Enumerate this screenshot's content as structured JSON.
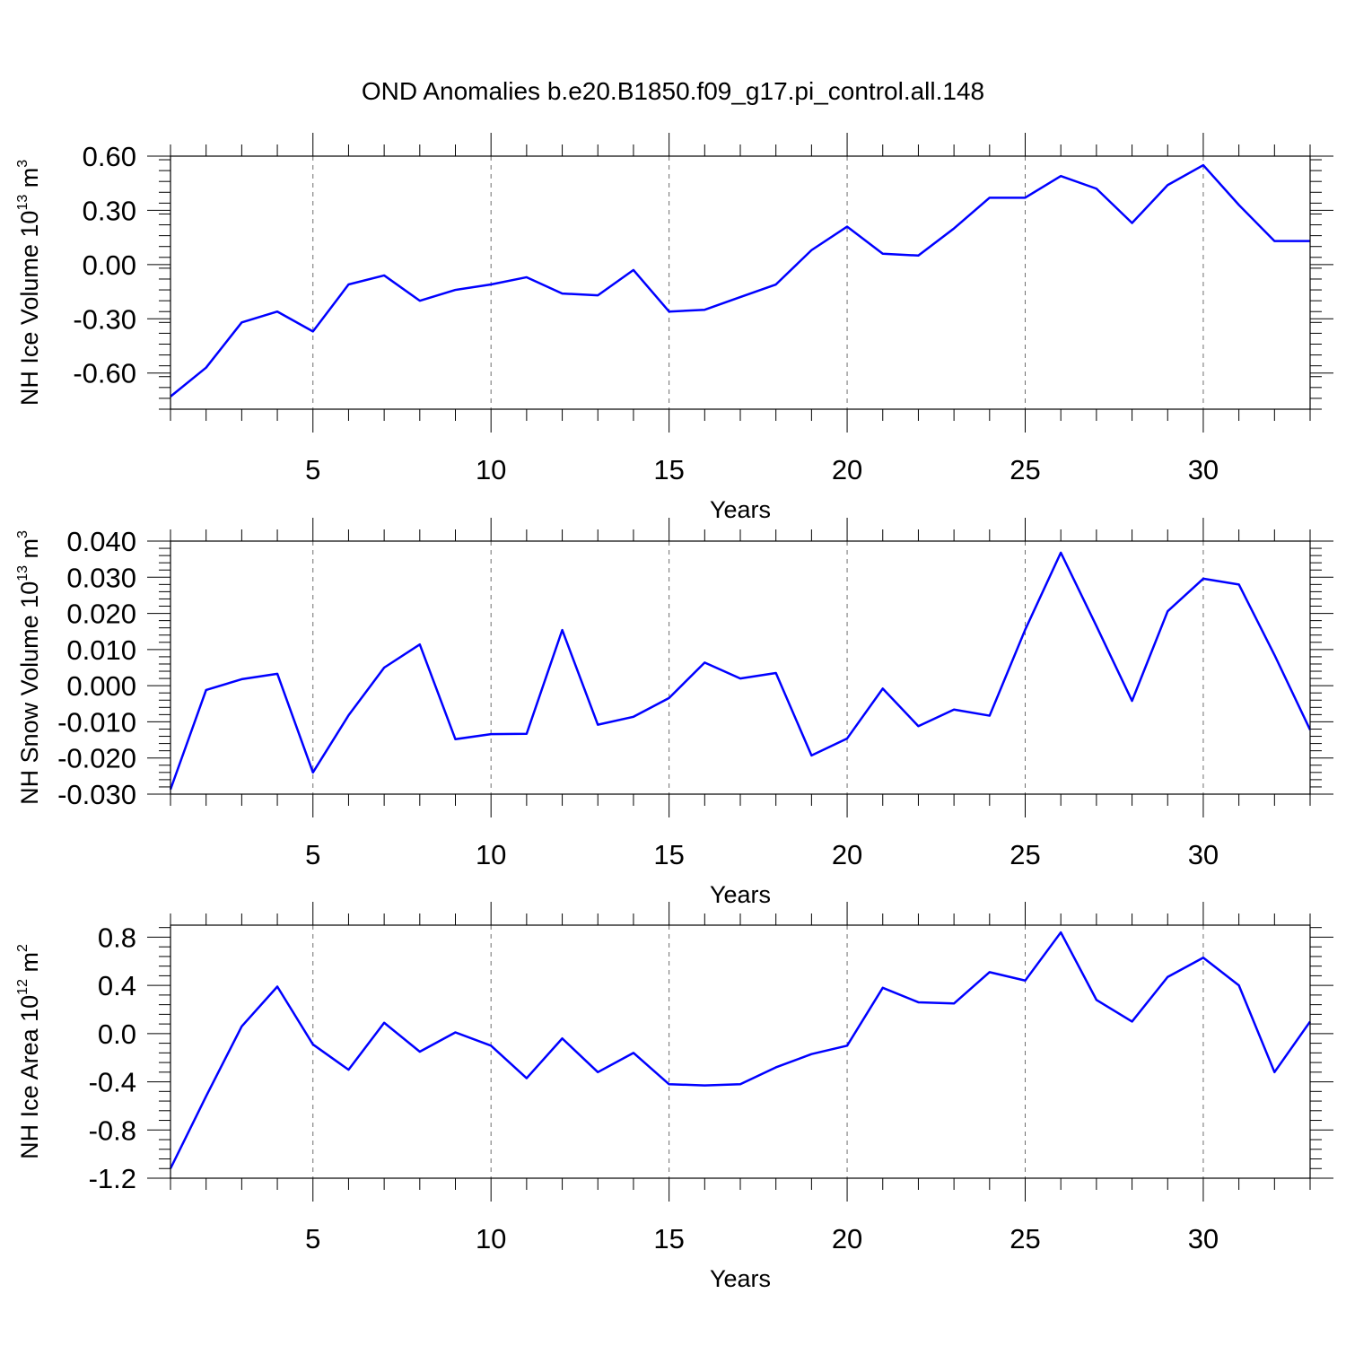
{
  "title": "OND Anomalies b.e20.B1850.f09_g17.pi_control.all.148",
  "line_color": "#0000ff",
  "chart_data": [
    {
      "type": "line",
      "xlabel": "Years",
      "ylabel": {
        "main": "NH Ice Volume 10",
        "exp": "13",
        "unit": " m",
        "unit_exp": "3"
      },
      "xlim": [
        1,
        33
      ],
      "ylim": [
        -0.8,
        0.6
      ],
      "x_ticks": [
        5,
        10,
        15,
        20,
        25,
        30
      ],
      "x_tick_labels": [
        "5",
        "10",
        "15",
        "20",
        "25",
        "30"
      ],
      "y_ticks": [
        0.6,
        0.3,
        0.0,
        -0.3,
        -0.6
      ],
      "y_tick_labels": [
        "0.60",
        "0.30",
        "0.00",
        "-0.30",
        "-0.60"
      ],
      "grid": "vertical dashed at major x ticks",
      "x": [
        1,
        2,
        3,
        4,
        5,
        6,
        7,
        8,
        9,
        10,
        11,
        12,
        13,
        14,
        15,
        16,
        17,
        18,
        19,
        20,
        21,
        22,
        23,
        24,
        25,
        26,
        27,
        28,
        29,
        30,
        31,
        32,
        33
      ],
      "series": [
        {
          "values": [
            -0.73,
            -0.57,
            -0.32,
            -0.26,
            -0.37,
            -0.11,
            -0.06,
            -0.2,
            -0.14,
            -0.11,
            -0.07,
            -0.16,
            -0.17,
            -0.03,
            -0.26,
            -0.25,
            -0.18,
            -0.11,
            0.08,
            0.21,
            0.06,
            0.05,
            0.2,
            0.37,
            0.37,
            0.49,
            0.42,
            0.23,
            0.44,
            0.55,
            0.33,
            0.13,
            0.13
          ]
        }
      ]
    },
    {
      "type": "line",
      "xlabel": "Years",
      "ylabel": {
        "main": "NH Snow Volume 10",
        "exp": "13",
        "unit": " m",
        "unit_exp": "3"
      },
      "xlim": [
        1,
        33
      ],
      "ylim": [
        -0.03,
        0.04
      ],
      "x_ticks": [
        5,
        10,
        15,
        20,
        25,
        30
      ],
      "x_tick_labels": [
        "5",
        "10",
        "15",
        "20",
        "25",
        "30"
      ],
      "y_ticks": [
        0.04,
        0.03,
        0.02,
        0.01,
        0.0,
        -0.01,
        -0.02,
        -0.03
      ],
      "y_tick_labels": [
        "0.040",
        "0.030",
        "0.020",
        "0.010",
        "0.000",
        "-0.010",
        "-0.020",
        "-0.030"
      ],
      "grid": "vertical dashed at major x ticks",
      "x": [
        1,
        2,
        3,
        4,
        5,
        6,
        7,
        8,
        9,
        10,
        11,
        12,
        13,
        14,
        15,
        16,
        17,
        18,
        19,
        20,
        21,
        22,
        23,
        24,
        25,
        26,
        27,
        28,
        29,
        30,
        31,
        32,
        33
      ],
      "series": [
        {
          "values": [
            -0.0287,
            -0.0012,
            0.0018,
            0.0033,
            -0.024,
            -0.0082,
            0.005,
            0.0114,
            -0.0148,
            -0.0134,
            -0.0133,
            0.0154,
            -0.0108,
            -0.0086,
            -0.0034,
            0.0064,
            0.002,
            0.0035,
            -0.0193,
            -0.0146,
            -0.0008,
            -0.0112,
            -0.0066,
            -0.0083,
            0.0155,
            0.0368,
            0.0165,
            -0.0042,
            0.0206,
            0.0296,
            0.028,
            0.0085,
            -0.0122
          ]
        }
      ]
    },
    {
      "type": "line",
      "xlabel": "Years",
      "ylabel": {
        "main": "NH Ice Area 10",
        "exp": "12",
        "unit": " m",
        "unit_exp": "2"
      },
      "xlim": [
        1,
        33
      ],
      "ylim": [
        -1.2,
        0.9
      ],
      "x_ticks": [
        5,
        10,
        15,
        20,
        25,
        30
      ],
      "x_tick_labels": [
        "5",
        "10",
        "15",
        "20",
        "25",
        "30"
      ],
      "y_ticks": [
        0.8,
        0.4,
        0.0,
        -0.4,
        -0.8,
        -1.2
      ],
      "y_tick_labels": [
        "0.8",
        "0.4",
        "0.0",
        "-0.4",
        "-0.8",
        "-1.2"
      ],
      "grid": "vertical dashed at major x ticks",
      "x": [
        1,
        2,
        3,
        4,
        5,
        6,
        7,
        8,
        9,
        10,
        11,
        12,
        13,
        14,
        15,
        16,
        17,
        18,
        19,
        20,
        21,
        22,
        23,
        24,
        25,
        26,
        27,
        28,
        29,
        30,
        31,
        32,
        33
      ],
      "series": [
        {
          "values": [
            -1.12,
            -0.52,
            0.06,
            0.39,
            -0.09,
            -0.3,
            0.09,
            -0.15,
            0.01,
            -0.1,
            -0.37,
            -0.04,
            -0.32,
            -0.16,
            -0.42,
            -0.43,
            -0.42,
            -0.28,
            -0.17,
            -0.1,
            0.38,
            0.26,
            0.25,
            0.51,
            0.44,
            0.84,
            0.28,
            0.1,
            0.47,
            0.63,
            0.4,
            -0.32,
            0.1
          ]
        }
      ]
    }
  ]
}
